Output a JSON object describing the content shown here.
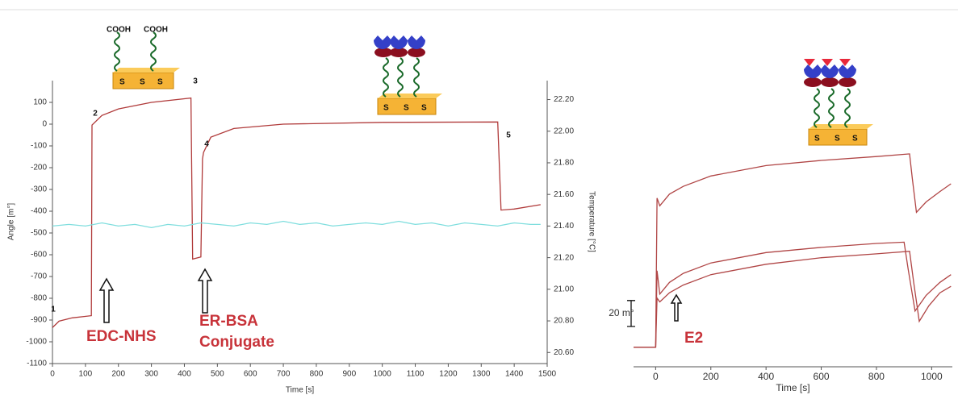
{
  "chart_data": [
    {
      "type": "line",
      "xlabel": "Time [s]",
      "ylabel": "Angle [m°]",
      "y2label": "Temperature [°C]",
      "xlim": [
        0,
        1500
      ],
      "xticks": [
        0,
        100,
        200,
        300,
        400,
        500,
        600,
        700,
        800,
        900,
        1000,
        1100,
        1200,
        1300,
        1400,
        1500
      ],
      "ylim": [
        -1100,
        200
      ],
      "yticks": [
        -1100,
        -1000,
        -900,
        -800,
        -700,
        -600,
        -500,
        -400,
        -300,
        -200,
        -100,
        0,
        100
      ],
      "y2lim": [
        20.53,
        22.32
      ],
      "y2ticks": [
        {
          "value": 20.6,
          "label": "20.60"
        },
        {
          "value": 20.8,
          "label": "20.80"
        },
        {
          "value": 21,
          "label": "21.00"
        },
        {
          "value": 21.2,
          "label": "21.20"
        },
        {
          "value": 21.4,
          "label": "21.40"
        },
        {
          "value": 21.6,
          "label": "21.60"
        },
        {
          "value": 21.8,
          "label": "21.80"
        },
        {
          "value": 22,
          "label": "22.00"
        },
        {
          "value": 22.2,
          "label": "22.20"
        }
      ],
      "series": [
        {
          "name": "Angle",
          "color": "#b03a3a",
          "x": [
            0,
            20,
            60,
            118,
            120,
            150,
            200,
            300,
            420,
            425,
            450,
            455,
            458,
            480,
            550,
            700,
            1000,
            1350,
            1360,
            1400,
            1480
          ],
          "values": [
            -935,
            -905,
            -890,
            -880,
            -4,
            40,
            70,
            100,
            120,
            -620,
            -610,
            -160,
            -130,
            -60,
            -20,
            0,
            8,
            10,
            -395,
            -390,
            -370
          ]
        },
        {
          "name": "Temperature",
          "color": "#7fdede",
          "axis": "y2",
          "x": [
            0,
            50,
            100,
            150,
            200,
            250,
            300,
            350,
            400,
            450,
            500,
            550,
            600,
            650,
            700,
            750,
            800,
            850,
            900,
            950,
            1000,
            1050,
            1100,
            1150,
            1200,
            1250,
            1300,
            1350,
            1400,
            1450,
            1480
          ],
          "values": [
            21.4,
            21.41,
            21.4,
            21.42,
            21.4,
            21.41,
            21.39,
            21.41,
            21.4,
            21.42,
            21.41,
            21.4,
            21.42,
            21.41,
            21.43,
            21.41,
            21.42,
            21.4,
            21.41,
            21.42,
            21.41,
            21.43,
            21.41,
            21.42,
            21.4,
            21.42,
            21.41,
            21.4,
            21.42,
            21.41,
            21.41
          ]
        }
      ],
      "event_labels": [
        "1",
        "2",
        "3",
        "4",
        "5"
      ],
      "annotations": [
        "EDC-NHS",
        "ER-BSA",
        "Conjugate"
      ]
    },
    {
      "type": "line",
      "xlabel": "Time [s]",
      "xlim": [
        -80,
        1075
      ],
      "xticks": [
        0,
        200,
        400,
        600,
        800,
        1000
      ],
      "ylim": [
        -15,
        162
      ],
      "scale_bar": {
        "value": 20,
        "label": "20 m°"
      },
      "annotations": [
        "E2"
      ],
      "series": [
        {
          "color": "#b04545",
          "x": [
            -80,
            -5,
            0,
            5,
            15,
            50,
            100,
            200,
            400,
            600,
            800,
            920,
            930,
            945,
            980,
            1030,
            1070
          ],
          "values": [
            0,
            0,
            0,
            115,
            109,
            118,
            124,
            132,
            140,
            144,
            147,
            149,
            130,
            104,
            112,
            120,
            126
          ]
        },
        {
          "color": "#b04545",
          "x": [
            -80,
            -5,
            0,
            5,
            15,
            50,
            100,
            200,
            400,
            600,
            800,
            900,
            915,
            940,
            980,
            1030,
            1070
          ],
          "values": [
            0,
            0,
            0,
            59,
            41,
            50,
            57,
            65,
            73,
            77,
            80,
            81,
            60,
            28,
            40,
            50,
            56
          ]
        },
        {
          "color": "#b04545",
          "x": [
            -80,
            -5,
            0,
            5,
            15,
            50,
            100,
            200,
            400,
            600,
            800,
            920,
            935,
            955,
            990,
            1030,
            1070
          ],
          "values": [
            0,
            0,
            0,
            38,
            35,
            42,
            48,
            56,
            64,
            69,
            72,
            74,
            50,
            20,
            32,
            42,
            47
          ]
        }
      ]
    }
  ],
  "illustrations": {
    "left": [
      "COOH",
      "COOH",
      "S",
      "S",
      "S"
    ],
    "middle": [
      "S",
      "S",
      "S"
    ],
    "right": [
      "S",
      "S",
      "S"
    ]
  }
}
